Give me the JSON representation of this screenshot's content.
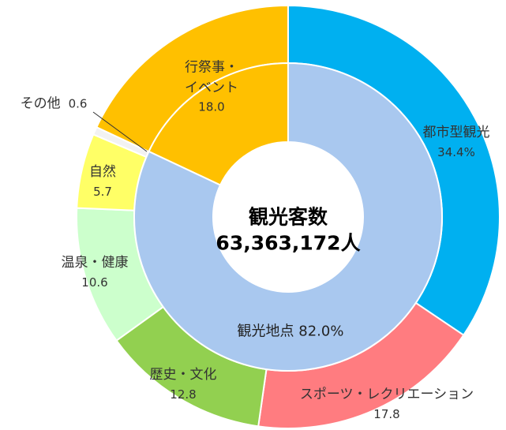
{
  "chart_data": {
    "type": "pie",
    "categories": [
      "都市型観光",
      "スポーツ・レクリエーション",
      "歴史・文化",
      "温泉・健康",
      "自然",
      "その他",
      "行祭事・イベント"
    ],
    "values": [
      34.4,
      17.8,
      12.8,
      10.6,
      5.7,
      0.6,
      18.0
    ],
    "value_labels": [
      "34.4%",
      "17.8",
      "12.8",
      "10.6",
      "5.7",
      "0.6",
      "18.0"
    ],
    "colors": [
      "#00b0f0",
      "#ff7c80",
      "#92d050",
      "#ccffcc",
      "#ffff66",
      "#f2f2f2",
      "#ffc000"
    ],
    "inner": {
      "categories": [
        null,
        "観光地点"
      ],
      "values": [
        18.0,
        82.0
      ],
      "value_labels": [
        "18.0",
        "82.0%"
      ],
      "colors": [
        "#ffc000",
        "#a9c8ef"
      ]
    },
    "center_title": "観光客数",
    "center_value": "63,363,172人"
  }
}
